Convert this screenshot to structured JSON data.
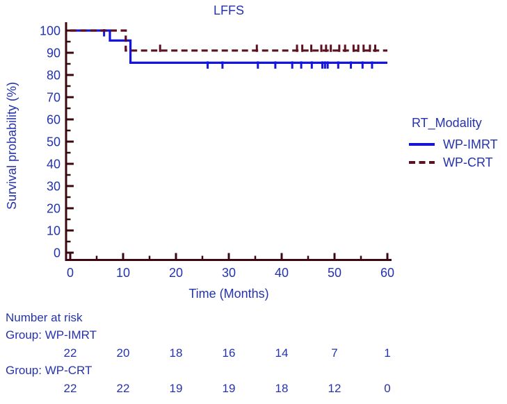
{
  "title": "LFFS",
  "colors": {
    "text_blue": "#2433ad",
    "curve_blue": "#1315dd",
    "curve_red": "#5c1120",
    "axis": "#3c070f",
    "background": "#ffffff"
  },
  "chart_data": {
    "type": "line",
    "subtype": "kaplan-meier-step",
    "title": "LFFS",
    "xlabel": "Time (Months)",
    "ylabel": "Survival probability (%)",
    "xlim": [
      0,
      60
    ],
    "ylim": [
      0,
      100
    ],
    "xticks": [
      0,
      10,
      20,
      30,
      40,
      50,
      60
    ],
    "xticks_minor": [
      5,
      15,
      25,
      35,
      45,
      55
    ],
    "yticks": [
      0,
      10,
      20,
      30,
      40,
      50,
      60,
      70,
      80,
      90,
      100
    ],
    "yticks_minor": [
      5,
      15,
      25,
      35,
      45,
      55,
      65,
      75,
      85,
      95
    ],
    "grid": false,
    "legend_title": "RT_Modality",
    "legend_position": "right-outside",
    "series": [
      {
        "name": "WP-IMRT",
        "color": "#1315dd",
        "style": "solid",
        "censor_direction": "down",
        "steps": [
          [
            0,
            100
          ],
          [
            7.5,
            100
          ],
          [
            7.5,
            95.5
          ],
          [
            11.4,
            95.5
          ],
          [
            11.4,
            85.5
          ],
          [
            60,
            85.5
          ]
        ],
        "censor_marks": [
          [
            6.4,
            100
          ],
          [
            26,
            85.5
          ],
          [
            28.8,
            85.5
          ],
          [
            35.5,
            85.5
          ],
          [
            38.8,
            85.5
          ],
          [
            42,
            85.5
          ],
          [
            43.7,
            85.5
          ],
          [
            45.7,
            85.5
          ],
          [
            47.7,
            85.5
          ],
          [
            48.2,
            85.5
          ],
          [
            48.7,
            85.5
          ],
          [
            50.7,
            85.5
          ],
          [
            53.1,
            85.5
          ],
          [
            55.3,
            85.5
          ],
          [
            57.1,
            85.5
          ]
        ]
      },
      {
        "name": "WP-CRT",
        "color": "#5c1120",
        "style": "dashed",
        "censor_direction": "up",
        "steps": [
          [
            0,
            100
          ],
          [
            10.5,
            100
          ],
          [
            10.5,
            91
          ],
          [
            60,
            91
          ]
        ],
        "censor_marks": [
          [
            17,
            91
          ],
          [
            35.3,
            91
          ],
          [
            42.9,
            91
          ],
          [
            43.9,
            91
          ],
          [
            45.6,
            91
          ],
          [
            47.5,
            91
          ],
          [
            48.4,
            91
          ],
          [
            49.3,
            91
          ],
          [
            50.9,
            91
          ],
          [
            52,
            91
          ],
          [
            53.6,
            91
          ],
          [
            54.5,
            91
          ],
          [
            55.5,
            91
          ],
          [
            56.7,
            91
          ],
          [
            57.7,
            91
          ]
        ]
      }
    ]
  },
  "risk_table": {
    "heading": "Number at risk",
    "times": [
      0,
      10,
      20,
      30,
      40,
      50,
      60
    ],
    "groups": [
      {
        "label": "Group: WP-IMRT",
        "counts": [
          "22",
          "20",
          "18",
          "16",
          "14",
          "7",
          "1"
        ]
      },
      {
        "label": "Group: WP-CRT",
        "counts": [
          "22",
          "22",
          "19",
          "19",
          "18",
          "12",
          "0"
        ]
      }
    ]
  }
}
